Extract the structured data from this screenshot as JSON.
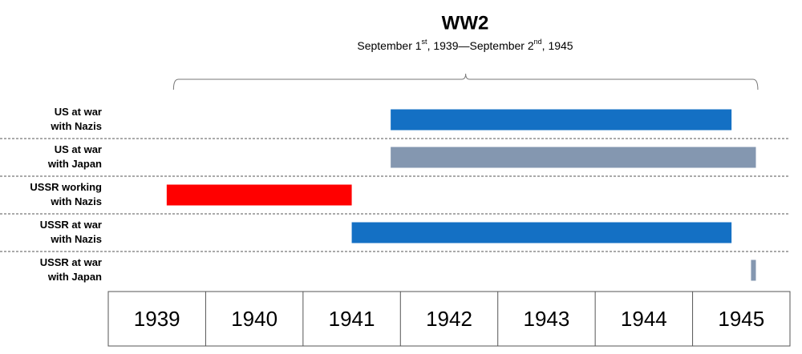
{
  "chart_data": {
    "type": "timeline",
    "title": "WW2",
    "subtitle": [
      "September 1",
      "st",
      ", 1939—September 2",
      "nd",
      ", 1945"
    ],
    "span": [
      1939.67,
      1945.67
    ],
    "categories": [
      [
        "US at war",
        "with Nazis"
      ],
      [
        "US at war",
        "with Japan"
      ],
      [
        "USSR working",
        "with Nazis"
      ],
      [
        "USSR at war",
        "with Nazis"
      ],
      [
        "USSR at war",
        "with Japan"
      ]
    ],
    "starts": [
      1941.9,
      1941.9,
      1939.6,
      1941.5,
      1945.6
    ],
    "ends": [
      1945.4,
      1945.65,
      1941.5,
      1945.4,
      1945.65
    ],
    "colors": [
      "#1470c4",
      "#8497b0",
      "#ff0000",
      "#1470c4",
      "#8497b0"
    ],
    "xlim": [
      1939,
      1946
    ],
    "xticks": [
      1939,
      1940,
      1941,
      1942,
      1943,
      1944,
      1945
    ]
  }
}
